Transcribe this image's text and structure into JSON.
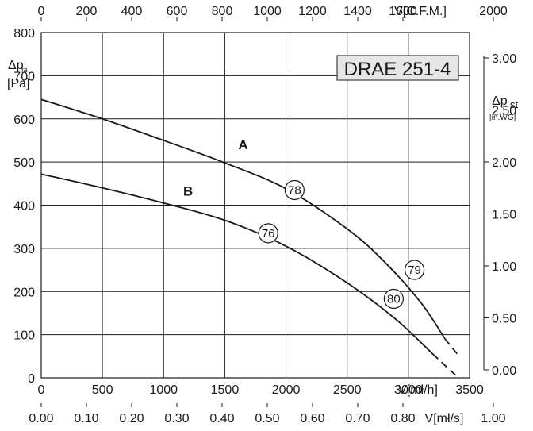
{
  "chart_data": {
    "type": "line",
    "title": "DRAE 251-4",
    "grid": true,
    "x_axis": {
      "unit_label": "V[mł/h]",
      "range": [
        0,
        3500
      ],
      "ticks": [
        0,
        500,
        1000,
        1500,
        2000,
        2500,
        3000,
        3500
      ]
    },
    "x_axis_top": {
      "unit_label": "V[C.F.M.]",
      "range": [
        0,
        2000
      ],
      "ticks": [
        "0",
        "200",
        "400",
        "600",
        "800",
        "1000",
        "1200",
        "1400",
        "1600",
        "2000"
      ]
    },
    "x_axis_bottom2": {
      "unit_label": "V[mł/s]",
      "range": [
        0,
        1.0
      ],
      "ticks": [
        "0.00",
        "0.10",
        "0.20",
        "0.30",
        "0.40",
        "0.50",
        "0.60",
        "0.70",
        "0.80",
        "1.00"
      ]
    },
    "y_axis": {
      "label_main": "Δp",
      "label_sub": "fa",
      "unit": "[Pa]",
      "range": [
        0,
        800
      ],
      "ticks": [
        0,
        100,
        200,
        300,
        400,
        500,
        600,
        700,
        800
      ]
    },
    "y_axis_right": {
      "label_main": "Δp",
      "label_sub": "st",
      "unit": "[in.WG]",
      "range": [
        0,
        3.2
      ],
      "ticks": [
        "0.00",
        "0.50",
        "1.00",
        "1.50",
        "2.00",
        "2.50",
        "3.00"
      ]
    },
    "series": [
      {
        "name": "A",
        "x": [
          0,
          500,
          1000,
          1500,
          2000,
          2500,
          2800,
          3100,
          3300
        ],
        "y": [
          645,
          600,
          550,
          498,
          438,
          345,
          270,
          175,
          90
        ],
        "dashed_from_x": 3300,
        "dashed_x": [
          3300,
          3400
        ],
        "dashed_y": [
          90,
          55
        ],
        "markers": [
          {
            "label": "78",
            "x": 2070,
            "y": 435
          },
          {
            "label": "79",
            "x": 3050,
            "y": 250
          }
        ],
        "label_position": {
          "x": 1650,
          "y": 530
        }
      },
      {
        "name": "B",
        "x": [
          0,
          500,
          1000,
          1500,
          2000,
          2500,
          2900,
          3200
        ],
        "y": [
          472,
          440,
          405,
          365,
          305,
          220,
          135,
          55
        ],
        "dashed_x": [
          3200,
          3390
        ],
        "dashed_y": [
          55,
          5
        ],
        "markers": [
          {
            "label": "76",
            "x": 1855,
            "y": 335
          },
          {
            "label": "80",
            "x": 2880,
            "y": 183
          }
        ],
        "label_position": {
          "x": 1200,
          "y": 422
        }
      }
    ]
  }
}
